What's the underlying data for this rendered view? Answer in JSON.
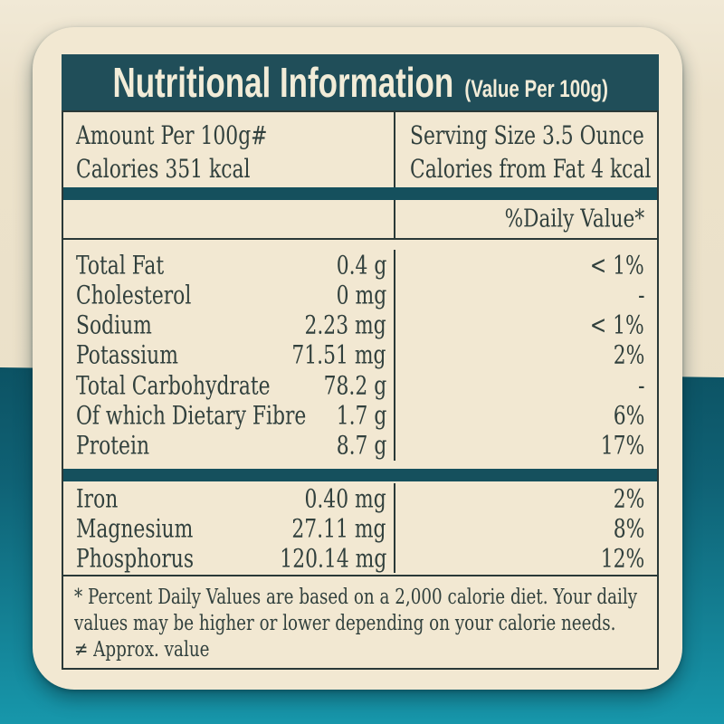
{
  "header": {
    "title": "Nutritional Information",
    "subtitle": "(Value Per 100g)"
  },
  "info": {
    "left_line1": "Amount Per 100g#",
    "left_line2": "Calories 351 kcal",
    "right_line1": "Serving Size 3.5 Ounce",
    "right_line2": "Calories from Fat 4 kcal"
  },
  "daily_value_header": "%Daily Value*",
  "nutrients": [
    {
      "label": "Total Fat",
      "amount": "0.4 g",
      "dv": "< 1%"
    },
    {
      "label": "Cholesterol",
      "amount": "0 mg",
      "dv": "-"
    },
    {
      "label": "Sodium",
      "amount": "2.23 mg",
      "dv": "< 1%"
    },
    {
      "label": "Potassium",
      "amount": "71.51 mg",
      "dv": "2%"
    },
    {
      "label": "Total Carbohydrate",
      "amount": "78.2 g",
      "dv": "-"
    },
    {
      "label": "Of which Dietary Fibre",
      "amount": "1.7 g",
      "dv": "6%"
    },
    {
      "label": "Protein",
      "amount": "8.7 g",
      "dv": "17%"
    }
  ],
  "minerals": [
    {
      "label": "Iron",
      "amount": "0.40 mg",
      "dv": "2%"
    },
    {
      "label": "Magnesium",
      "amount": "27.11 mg",
      "dv": "8%"
    },
    {
      "label": "Phosphorus",
      "amount": "120.14 mg",
      "dv": "12%"
    }
  ],
  "footnote": {
    "lines": [
      "* Percent Daily Values are based on a 2,000 calorie diet. Your daily",
      "values may be higher or lower depending on your calorie needs.",
      "≠ Approx. value"
    ]
  },
  "colors": {
    "header_teal": "#204e59",
    "separator_teal": "#15505d",
    "bottom_band_teal_top": "#0c5263",
    "bottom_band_teal_bottom": "#1797ab",
    "card_cream": "#f2e8d2",
    "background_cream": "#ece2cb",
    "border_dark": "#2a3938",
    "text_dark": "#31403d",
    "header_text_cream": "#f2ecd8"
  }
}
